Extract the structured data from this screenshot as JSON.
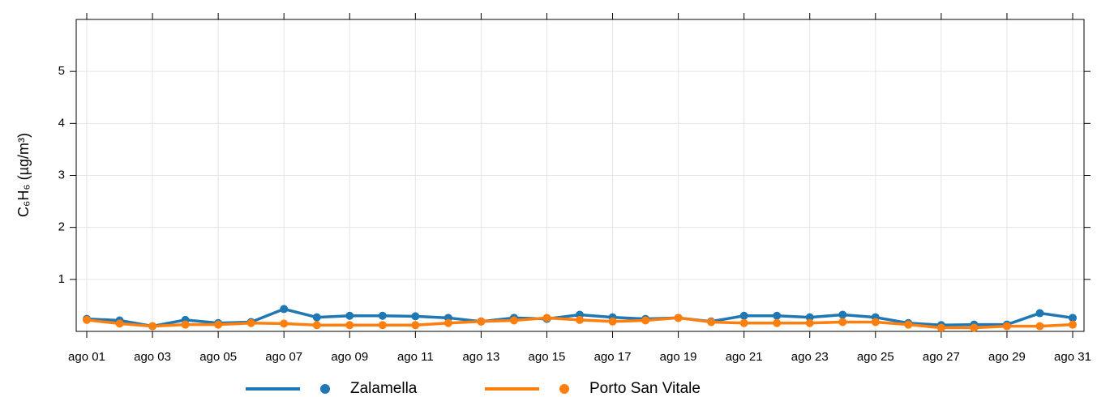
{
  "chart_data": {
    "type": "line",
    "ylabel": "C₆H₆ (µg/m³)",
    "categories": [
      "ago 01",
      null,
      "ago 03",
      null,
      "ago 05",
      null,
      "ago 07",
      null,
      "ago 09",
      null,
      "ago 11",
      null,
      "ago 13",
      null,
      "ago 15",
      null,
      "ago 17",
      null,
      "ago 19",
      null,
      "ago 21",
      null,
      "ago 23",
      null,
      "ago 25",
      null,
      "ago 27",
      null,
      "ago 29",
      null,
      "ago 31"
    ],
    "series": [
      {
        "name": "Zalamella",
        "color": "#1f77b4",
        "values": [
          0.24,
          0.21,
          0.1,
          0.22,
          0.16,
          0.18,
          0.43,
          0.27,
          0.3,
          0.3,
          0.29,
          0.26,
          0.19,
          0.26,
          0.24,
          0.32,
          0.27,
          0.24,
          0.26,
          0.19,
          0.3,
          0.3,
          0.27,
          0.32,
          0.27,
          0.16,
          0.12,
          0.13,
          0.13,
          0.35,
          0.26
        ]
      },
      {
        "name": "Porto San Vitale",
        "color": "#ff7f0e",
        "values": [
          0.22,
          0.15,
          0.1,
          0.13,
          0.13,
          0.16,
          0.15,
          0.12,
          0.12,
          0.12,
          0.12,
          0.16,
          0.19,
          0.21,
          0.26,
          0.22,
          0.19,
          0.21,
          0.26,
          0.18,
          0.16,
          0.16,
          0.16,
          0.18,
          0.18,
          0.13,
          0.07,
          0.07,
          0.1,
          0.1,
          0.13
        ]
      }
    ],
    "ylim": [
      0,
      6
    ],
    "yticks": [
      1,
      2,
      3,
      4,
      5
    ],
    "grid": true,
    "legend": "bottom"
  }
}
